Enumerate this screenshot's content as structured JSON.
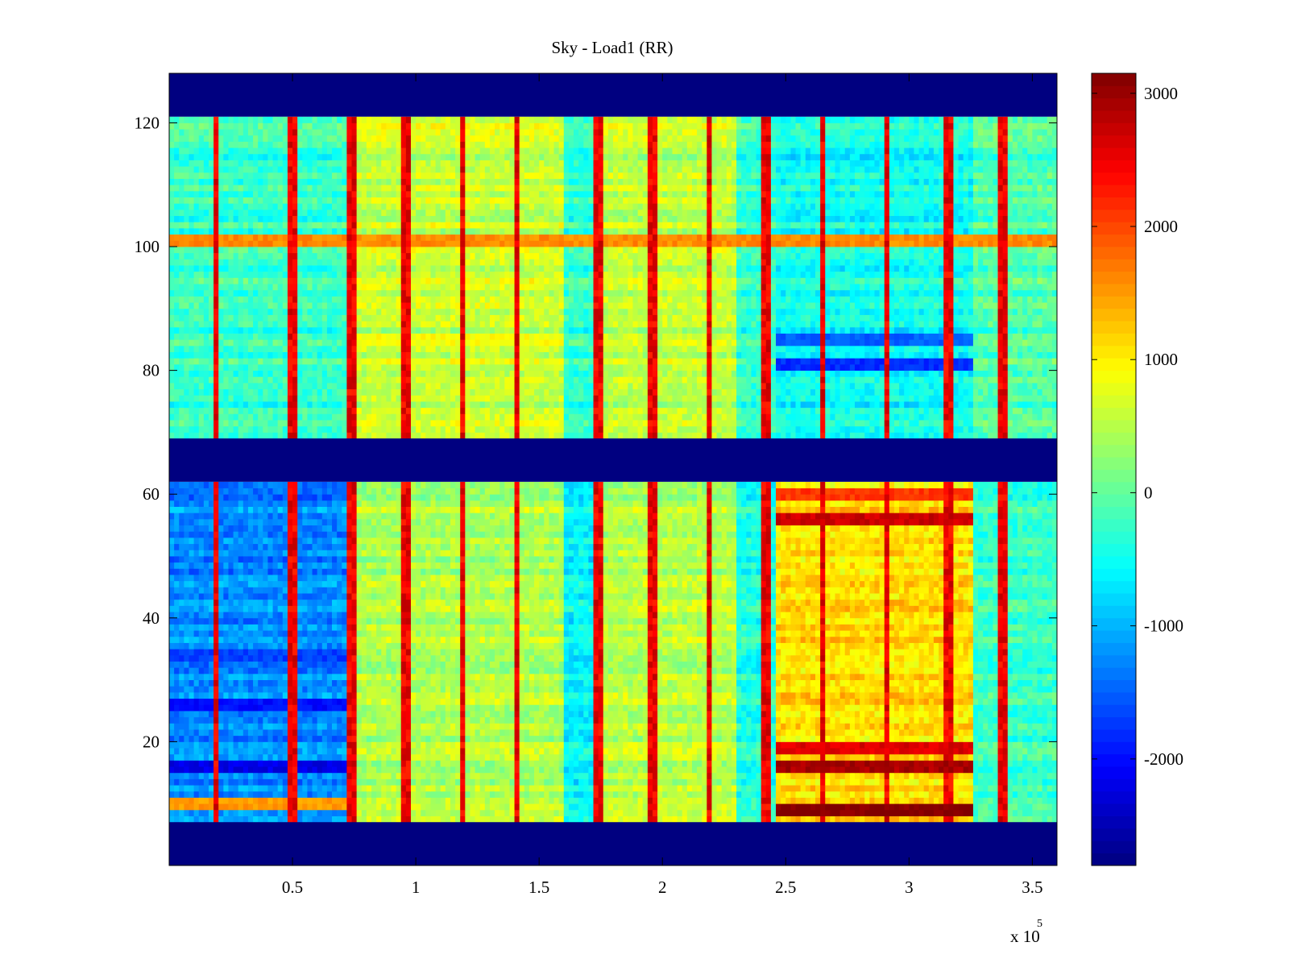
{
  "chart_data": {
    "type": "heatmap",
    "title": "Sky - Load1 (RR)",
    "xlabel": "",
    "ylabel": "",
    "x_scale_label": "x 10",
    "x_scale_exponent": "5",
    "xlim": [
      0,
      3.6
    ],
    "ylim": [
      0,
      128
    ],
    "x_ticks": [
      0.5,
      1,
      1.5,
      2,
      2.5,
      3,
      3.5
    ],
    "x_tick_labels": [
      "0.5",
      "1",
      "1.5",
      "2",
      "2.5",
      "3",
      "3.5"
    ],
    "y_ticks": [
      20,
      40,
      60,
      80,
      100,
      120
    ],
    "y_tick_labels": [
      "20",
      "40",
      "60",
      "80",
      "100",
      "120"
    ],
    "colormap": "jet",
    "clim": [
      -2800,
      3150
    ],
    "colorbar": {
      "ticks": [
        3000,
        2000,
        1000,
        0,
        -1000,
        -2000
      ],
      "tick_labels": [
        "3000",
        "2000",
        "1000",
        "0",
        "-1000",
        "-2000"
      ]
    },
    "flagged_bands_y": [
      [
        0,
        7
      ],
      [
        62,
        69
      ],
      [
        121,
        128
      ]
    ],
    "flag_value": -2800,
    "x_segments": [
      {
        "x0": 0.0,
        "x1": 0.75,
        "lower_band": -1250,
        "upper_band": -250
      },
      {
        "x0": 0.75,
        "x1": 1.6,
        "lower_band": 450,
        "upper_band": 600
      },
      {
        "x0": 1.6,
        "x1": 1.72,
        "lower_band": -600,
        "upper_band": -300
      },
      {
        "x0": 1.72,
        "x1": 2.3,
        "lower_band": 500,
        "upper_band": 550
      },
      {
        "x0": 2.3,
        "x1": 2.47,
        "lower_band": -400,
        "upper_band": -300
      },
      {
        "x0": 2.47,
        "x1": 3.26,
        "lower_band": 1100,
        "upper_band": -500
      },
      {
        "x0": 3.26,
        "x1": 3.6,
        "lower_band": -250,
        "upper_band": -100
      }
    ],
    "vertical_spikes_x": [
      0.19,
      0.5,
      0.74,
      0.96,
      1.19,
      1.41,
      1.74,
      1.96,
      2.19,
      2.42,
      2.65,
      2.91,
      3.16,
      3.38
    ],
    "strong_rows": [
      {
        "y": 9,
        "x0": 2.47,
        "x1": 3.26,
        "value": 3150
      },
      {
        "y": 16,
        "x0": 2.47,
        "x1": 3.26,
        "value": 2900
      },
      {
        "y": 19,
        "x0": 2.47,
        "x1": 3.26,
        "value": 2600
      },
      {
        "y": 56,
        "x0": 2.47,
        "x1": 3.26,
        "value": 2700
      },
      {
        "y": 60,
        "x0": 2.47,
        "x1": 3.26,
        "value": 2100
      },
      {
        "y": 10,
        "x0": 0.0,
        "x1": 0.75,
        "value": 1500
      },
      {
        "y": 16,
        "x0": 0.0,
        "x1": 0.75,
        "value": -2200
      },
      {
        "y": 26,
        "x0": 0.0,
        "x1": 0.75,
        "value": -2000
      },
      {
        "y": 34,
        "x0": 0.0,
        "x1": 0.75,
        "value": -1700
      },
      {
        "y": 101,
        "x0": 0.0,
        "x1": 3.6,
        "value": 1600
      },
      {
        "y": 81,
        "x0": 2.47,
        "x1": 3.26,
        "value": -1800
      },
      {
        "y": 85,
        "x0": 2.47,
        "x1": 3.26,
        "value": -1500
      },
      {
        "y": 85,
        "x0": 0.75,
        "x1": 1.6,
        "value": 900
      }
    ]
  }
}
